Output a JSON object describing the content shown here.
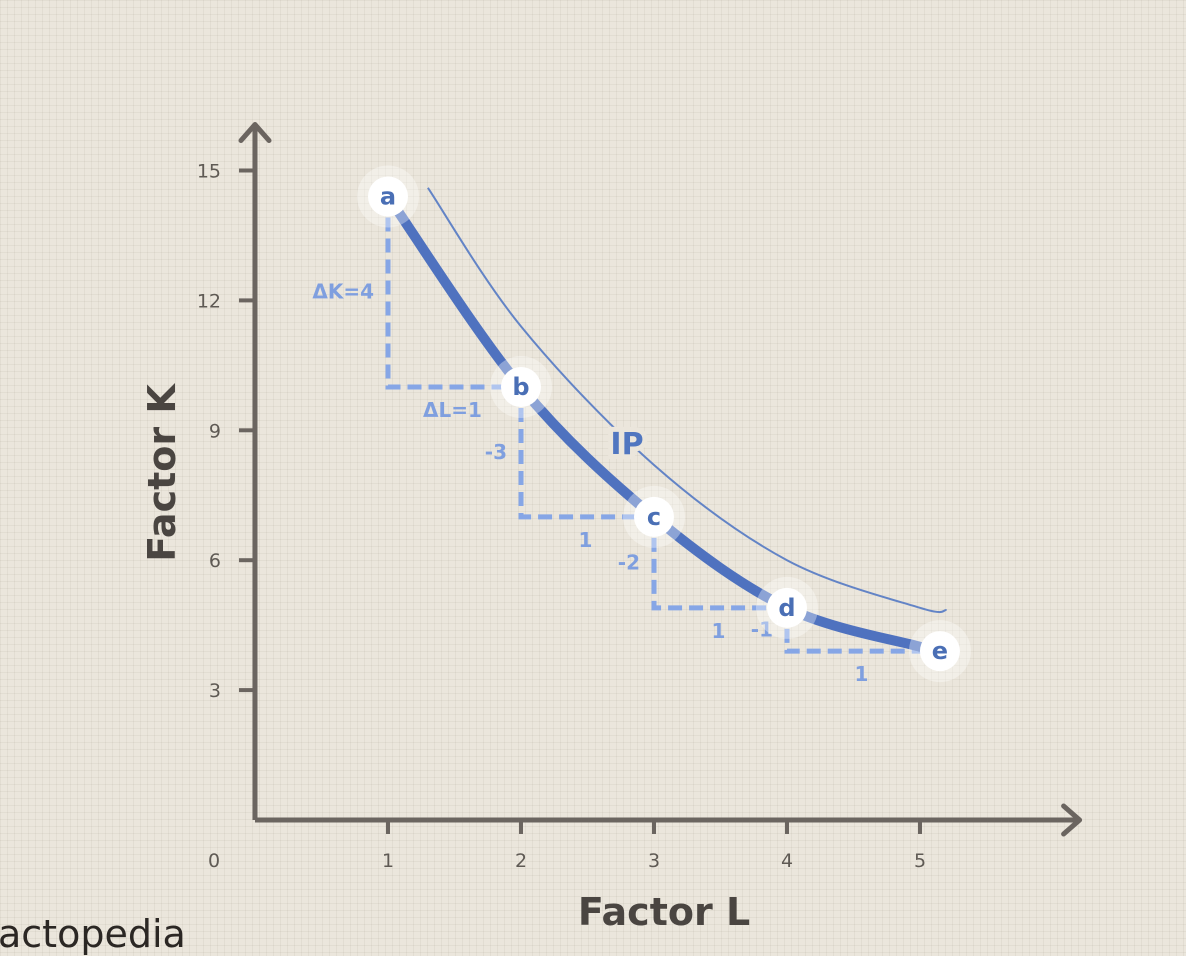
{
  "chart_data": {
    "type": "line",
    "xlabel": "Factor L",
    "ylabel": "Factor K",
    "origin_label": "0",
    "x_ticks": [
      1,
      2,
      3,
      4,
      5
    ],
    "y_ticks": [
      3,
      6,
      9,
      12,
      15
    ],
    "xlim": [
      0,
      6.2
    ],
    "ylim": [
      0,
      16.2
    ],
    "grid": false,
    "series": [
      {
        "values": [
          {
            "x": 1,
            "y": 14.4
          },
          {
            "x": 2,
            "y": 10
          },
          {
            "x": 3,
            "y": 7
          },
          {
            "x": 4,
            "y": 4.9
          },
          {
            "x": 5,
            "y": 4
          }
        ]
      }
    ],
    "outer_curve": {
      "label": "IP",
      "values": [
        {
          "x": 1.3,
          "y": 14.6
        },
        {
          "x": 2,
          "y": 11.4
        },
        {
          "x": 3,
          "y": 8.2
        },
        {
          "x": 4,
          "y": 6.0
        },
        {
          "x": 5,
          "y": 4.9
        },
        {
          "x": 5.2,
          "y": 4.85
        }
      ]
    },
    "points": [
      {
        "label": "a",
        "x": 1,
        "y": 14.4
      },
      {
        "label": "b",
        "x": 2,
        "y": 10
      },
      {
        "label": "c",
        "x": 3,
        "y": 7
      },
      {
        "label": "d",
        "x": 4,
        "y": 4.9
      },
      {
        "label": "e",
        "x": 5.15,
        "y": 3.9
      }
    ],
    "steps": [
      {
        "dK_label": "ΔK=4",
        "dL_label": "ΔL=1"
      },
      {
        "dK_label": "-3",
        "dL_label": "1"
      },
      {
        "dK_label": "-2",
        "dL_label": "1"
      },
      {
        "dK_label": "-1",
        "dL_label": "1"
      }
    ],
    "colors": {
      "main_curve": "#4f72bf",
      "outer_curve": "#6384c6",
      "dashed": "#86a6e6",
      "axis": "#6b6560",
      "point_label": "#4a6fb5"
    }
  },
  "footer": {
    "text": "actopedia"
  }
}
